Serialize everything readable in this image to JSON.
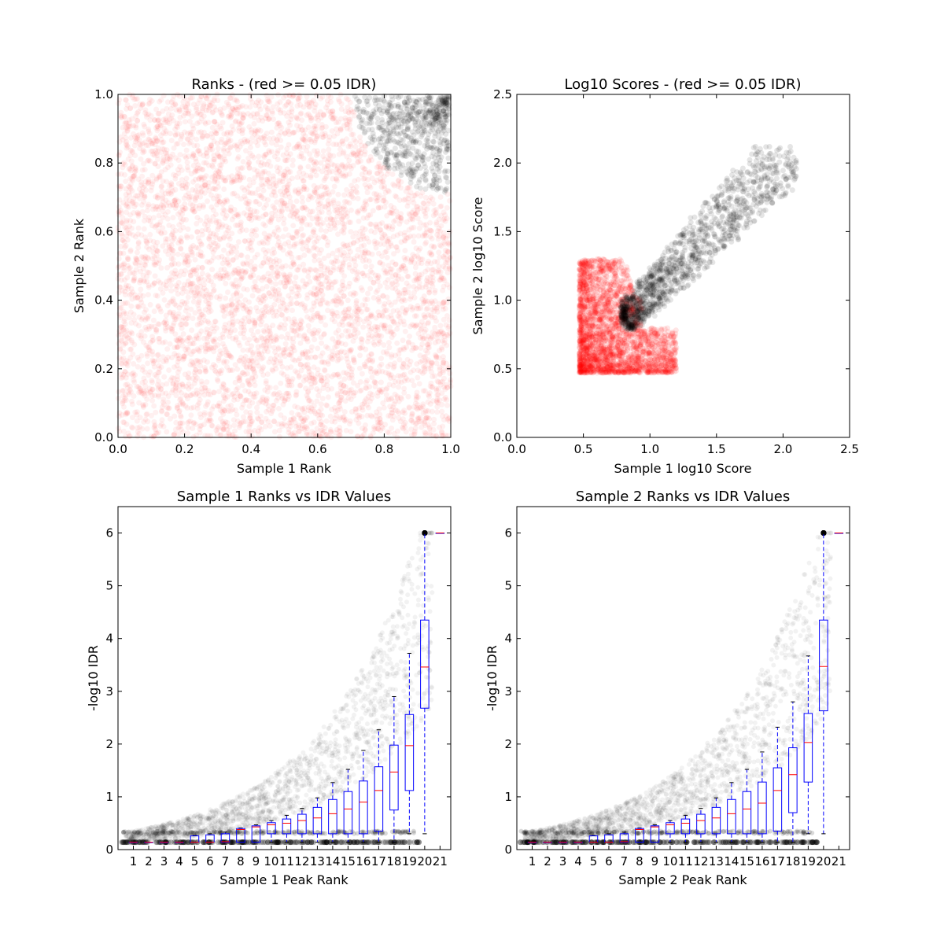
{
  "chart_data": [
    {
      "type": "scatter",
      "title": "Ranks - (red >= 0.05 IDR)",
      "xlabel": "Sample 1 Rank",
      "ylabel": "Sample 2 Rank",
      "xlim": [
        0.0,
        1.0
      ],
      "ylim": [
        0.0,
        1.0
      ],
      "xticks": [
        "0.0",
        "0.2",
        "0.4",
        "0.6",
        "0.8",
        "1.0"
      ],
      "yticks": [
        "0.0",
        "0.2",
        "0.4",
        "0.6",
        "0.8",
        "1.0"
      ],
      "grid": false,
      "series": [
        {
          "color": "#ff0000",
          "alpha": 0.06,
          "region": "uniform over [0,1]x[0,1] except top-right corner",
          "points": 5000
        },
        {
          "color": "#000000",
          "alpha": 0.1,
          "region": "top-right corner: distance from (1,1) <= 0.29",
          "points": 700
        }
      ]
    },
    {
      "type": "scatter",
      "title": "Log10 Scores - (red >= 0.05 IDR)",
      "xlabel": "Sample 1 log10 Score",
      "ylabel": "Sample 2 log10 Score",
      "xlim": [
        0.0,
        2.5
      ],
      "ylim": [
        0.0,
        2.5
      ],
      "xticks": [
        "0.0",
        "0.5",
        "1.0",
        "1.5",
        "2.0",
        "2.5"
      ],
      "yticks": [
        "0.0",
        "0.5",
        "1.0",
        "1.5",
        "2.0",
        "2.5"
      ],
      "grid": false,
      "series": [
        {
          "color": "#ff0000",
          "alpha": 0.1,
          "x_range": [
            0.47,
            1.2
          ],
          "y_range": [
            0.47,
            1.3
          ],
          "points": 2500
        },
        {
          "color": "#000000",
          "alpha": 0.1,
          "x_range": [
            0.78,
            2.1
          ],
          "y_range": [
            0.8,
            2.12
          ],
          "points": 1400
        }
      ]
    },
    {
      "type": "box",
      "title": "Sample 1 Ranks vs IDR Values",
      "xlabel": "Sample 1 Peak Rank",
      "ylabel": "-log10 IDR",
      "ylim": [
        0,
        6.5
      ],
      "categories": [
        "1",
        "2",
        "3",
        "4",
        "5",
        "6",
        "7",
        "8",
        "9",
        "10",
        "11",
        "12",
        "13",
        "14",
        "15",
        "16",
        "17",
        "18",
        "19",
        "20",
        "21"
      ],
      "yticks": [
        "0",
        "1",
        "2",
        "3",
        "4",
        "5",
        "6"
      ],
      "grid": false,
      "boxes": [
        {
          "q1": 0.14,
          "median": 0.14,
          "q3": 0.14,
          "wlo": 0.14,
          "whi": 0.14
        },
        {
          "q1": 0.14,
          "median": 0.14,
          "q3": 0.14,
          "wlo": 0.14,
          "whi": 0.14
        },
        {
          "q1": 0.14,
          "median": 0.14,
          "q3": 0.14,
          "wlo": 0.14,
          "whi": 0.14
        },
        {
          "q1": 0.14,
          "median": 0.14,
          "q3": 0.14,
          "wlo": 0.14,
          "whi": 0.14
        },
        {
          "q1": 0.14,
          "median": 0.14,
          "q3": 0.26,
          "wlo": 0.14,
          "whi": 0.27
        },
        {
          "q1": 0.14,
          "median": 0.14,
          "q3": 0.28,
          "wlo": 0.14,
          "whi": 0.3
        },
        {
          "q1": 0.14,
          "median": 0.15,
          "q3": 0.3,
          "wlo": 0.14,
          "whi": 0.33
        },
        {
          "q1": 0.14,
          "median": 0.38,
          "q3": 0.4,
          "wlo": 0.14,
          "whi": 0.41
        },
        {
          "q1": 0.14,
          "median": 0.43,
          "q3": 0.45,
          "wlo": 0.14,
          "whi": 0.47
        },
        {
          "q1": 0.3,
          "median": 0.47,
          "q3": 0.51,
          "wlo": 0.14,
          "whi": 0.55
        },
        {
          "q1": 0.3,
          "median": 0.5,
          "q3": 0.58,
          "wlo": 0.14,
          "whi": 0.65
        },
        {
          "q1": 0.3,
          "median": 0.55,
          "q3": 0.67,
          "wlo": 0.14,
          "whi": 0.78
        },
        {
          "q1": 0.3,
          "median": 0.6,
          "q3": 0.8,
          "wlo": 0.14,
          "whi": 0.98
        },
        {
          "q1": 0.3,
          "median": 0.68,
          "q3": 0.95,
          "wlo": 0.14,
          "whi": 1.27
        },
        {
          "q1": 0.3,
          "median": 0.77,
          "q3": 1.1,
          "wlo": 0.14,
          "whi": 1.52
        },
        {
          "q1": 0.3,
          "median": 0.9,
          "q3": 1.3,
          "wlo": 0.14,
          "whi": 1.88
        },
        {
          "q1": 0.35,
          "median": 1.12,
          "q3": 1.57,
          "wlo": 0.14,
          "whi": 2.27
        },
        {
          "q1": 0.75,
          "median": 1.47,
          "q3": 1.98,
          "wlo": 0.14,
          "whi": 2.9
        },
        {
          "q1": 1.12,
          "median": 1.97,
          "q3": 2.56,
          "wlo": 0.3,
          "whi": 3.72
        },
        {
          "q1": 2.68,
          "median": 3.46,
          "q3": 4.35,
          "wlo": 0.3,
          "whi": 6.0
        },
        {
          "q1": 6.0,
          "median": 6.0,
          "q3": 6.0,
          "wlo": 6.0,
          "whi": 6.0
        }
      ]
    },
    {
      "type": "box",
      "title": "Sample 2 Ranks vs IDR Values",
      "xlabel": "Sample 2 Peak Rank",
      "ylabel": "-log10 IDR",
      "ylim": [
        0,
        6.5
      ],
      "categories": [
        "1",
        "2",
        "3",
        "4",
        "5",
        "6",
        "7",
        "8",
        "9",
        "10",
        "11",
        "12",
        "13",
        "14",
        "15",
        "16",
        "17",
        "18",
        "19",
        "20",
        "21"
      ],
      "yticks": [
        "0",
        "1",
        "2",
        "3",
        "4",
        "5",
        "6"
      ],
      "grid": false,
      "boxes": [
        {
          "q1": 0.14,
          "median": 0.14,
          "q3": 0.14,
          "wlo": 0.14,
          "whi": 0.14
        },
        {
          "q1": 0.14,
          "median": 0.14,
          "q3": 0.14,
          "wlo": 0.14,
          "whi": 0.14
        },
        {
          "q1": 0.14,
          "median": 0.14,
          "q3": 0.14,
          "wlo": 0.14,
          "whi": 0.14
        },
        {
          "q1": 0.14,
          "median": 0.14,
          "q3": 0.14,
          "wlo": 0.14,
          "whi": 0.14
        },
        {
          "q1": 0.14,
          "median": 0.14,
          "q3": 0.26,
          "wlo": 0.14,
          "whi": 0.27
        },
        {
          "q1": 0.14,
          "median": 0.14,
          "q3": 0.28,
          "wlo": 0.14,
          "whi": 0.3
        },
        {
          "q1": 0.14,
          "median": 0.15,
          "q3": 0.3,
          "wlo": 0.14,
          "whi": 0.33
        },
        {
          "q1": 0.14,
          "median": 0.38,
          "q3": 0.4,
          "wlo": 0.14,
          "whi": 0.41
        },
        {
          "q1": 0.14,
          "median": 0.43,
          "q3": 0.45,
          "wlo": 0.14,
          "whi": 0.47
        },
        {
          "q1": 0.3,
          "median": 0.47,
          "q3": 0.51,
          "wlo": 0.14,
          "whi": 0.55
        },
        {
          "q1": 0.3,
          "median": 0.5,
          "q3": 0.58,
          "wlo": 0.14,
          "whi": 0.65
        },
        {
          "q1": 0.3,
          "median": 0.55,
          "q3": 0.67,
          "wlo": 0.14,
          "whi": 0.78
        },
        {
          "q1": 0.3,
          "median": 0.6,
          "q3": 0.8,
          "wlo": 0.14,
          "whi": 0.98
        },
        {
          "q1": 0.3,
          "median": 0.68,
          "q3": 0.95,
          "wlo": 0.14,
          "whi": 1.27
        },
        {
          "q1": 0.3,
          "median": 0.77,
          "q3": 1.1,
          "wlo": 0.14,
          "whi": 1.52
        },
        {
          "q1": 0.3,
          "median": 0.88,
          "q3": 1.28,
          "wlo": 0.14,
          "whi": 1.85
        },
        {
          "q1": 0.35,
          "median": 1.12,
          "q3": 1.55,
          "wlo": 0.14,
          "whi": 2.32
        },
        {
          "q1": 0.7,
          "median": 1.42,
          "q3": 1.93,
          "wlo": 0.14,
          "whi": 2.8
        },
        {
          "q1": 1.28,
          "median": 2.03,
          "q3": 2.58,
          "wlo": 0.3,
          "whi": 3.67
        },
        {
          "q1": 2.63,
          "median": 3.47,
          "q3": 4.35,
          "wlo": 0.3,
          "whi": 6.0
        },
        {
          "q1": 6.0,
          "median": 6.0,
          "q3": 6.0,
          "wlo": 6.0,
          "whi": 6.0
        }
      ]
    }
  ]
}
